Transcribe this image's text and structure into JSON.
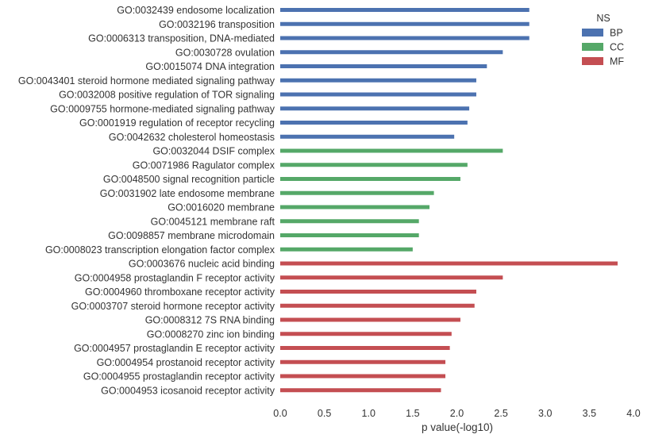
{
  "chart_data": {
    "type": "bar",
    "orientation": "horizontal",
    "xlabel": "p value(-log10)",
    "ylabel": "",
    "xlim": [
      0,
      4.0
    ],
    "xticks": [
      "0.0",
      "0.5",
      "1.0",
      "1.5",
      "2.0",
      "2.5",
      "3.0",
      "3.5",
      "4.0"
    ],
    "grid": false,
    "legend": {
      "title": "NS",
      "placement": "top-right",
      "entries": [
        {
          "key": "BP",
          "label": "BP",
          "color": "#4c72b0"
        },
        {
          "key": "CC",
          "label": "CC",
          "color": "#55a868"
        },
        {
          "key": "MF",
          "label": "MF",
          "color": "#c44e52"
        }
      ]
    },
    "categories": [
      "GO:0032439 endosome localization",
      "GO:0032196 transposition",
      "GO:0006313 transposition, DNA-mediated",
      "GO:0030728 ovulation",
      "GO:0015074 DNA integration",
      "GO:0043401 steroid hormone mediated signaling pathway",
      "GO:0032008 positive regulation of TOR signaling",
      "GO:0009755 hormone-mediated signaling pathway",
      "GO:0001919 regulation of receptor recycling",
      "GO:0042632 cholesterol homeostasis",
      "GO:0032044 DSIF complex",
      "GO:0071986 Ragulator complex",
      "GO:0048500 signal recognition particle",
      "GO:0031902 late endosome membrane",
      "GO:0016020 membrane",
      "GO:0045121 membrane raft",
      "GO:0098857 membrane microdomain",
      "GO:0008023 transcription elongation factor complex",
      "GO:0003676 nucleic acid binding",
      "GO:0004958 prostaglandin F receptor activity",
      "GO:0004960 thromboxane receptor activity",
      "GO:0003707 steroid hormone receptor activity",
      "GO:0008312 7S RNA binding",
      "GO:0008270 zinc ion binding",
      "GO:0004957 prostaglandin E receptor activity",
      "GO:0004954 prostanoid receptor activity",
      "GO:0004955 prostaglandin receptor activity",
      "GO:0004953 icosanoid receptor activity"
    ],
    "groups": [
      "BP",
      "BP",
      "BP",
      "BP",
      "BP",
      "BP",
      "BP",
      "BP",
      "BP",
      "BP",
      "CC",
      "CC",
      "CC",
      "CC",
      "CC",
      "CC",
      "CC",
      "CC",
      "MF",
      "MF",
      "MF",
      "MF",
      "MF",
      "MF",
      "MF",
      "MF",
      "MF",
      "MF"
    ],
    "values": [
      2.82,
      2.82,
      2.82,
      2.52,
      2.34,
      2.22,
      2.22,
      2.14,
      2.12,
      1.97,
      2.52,
      2.12,
      2.04,
      1.74,
      1.69,
      1.57,
      1.57,
      1.5,
      3.82,
      2.52,
      2.22,
      2.2,
      2.04,
      1.94,
      1.92,
      1.87,
      1.87,
      1.82
    ]
  }
}
